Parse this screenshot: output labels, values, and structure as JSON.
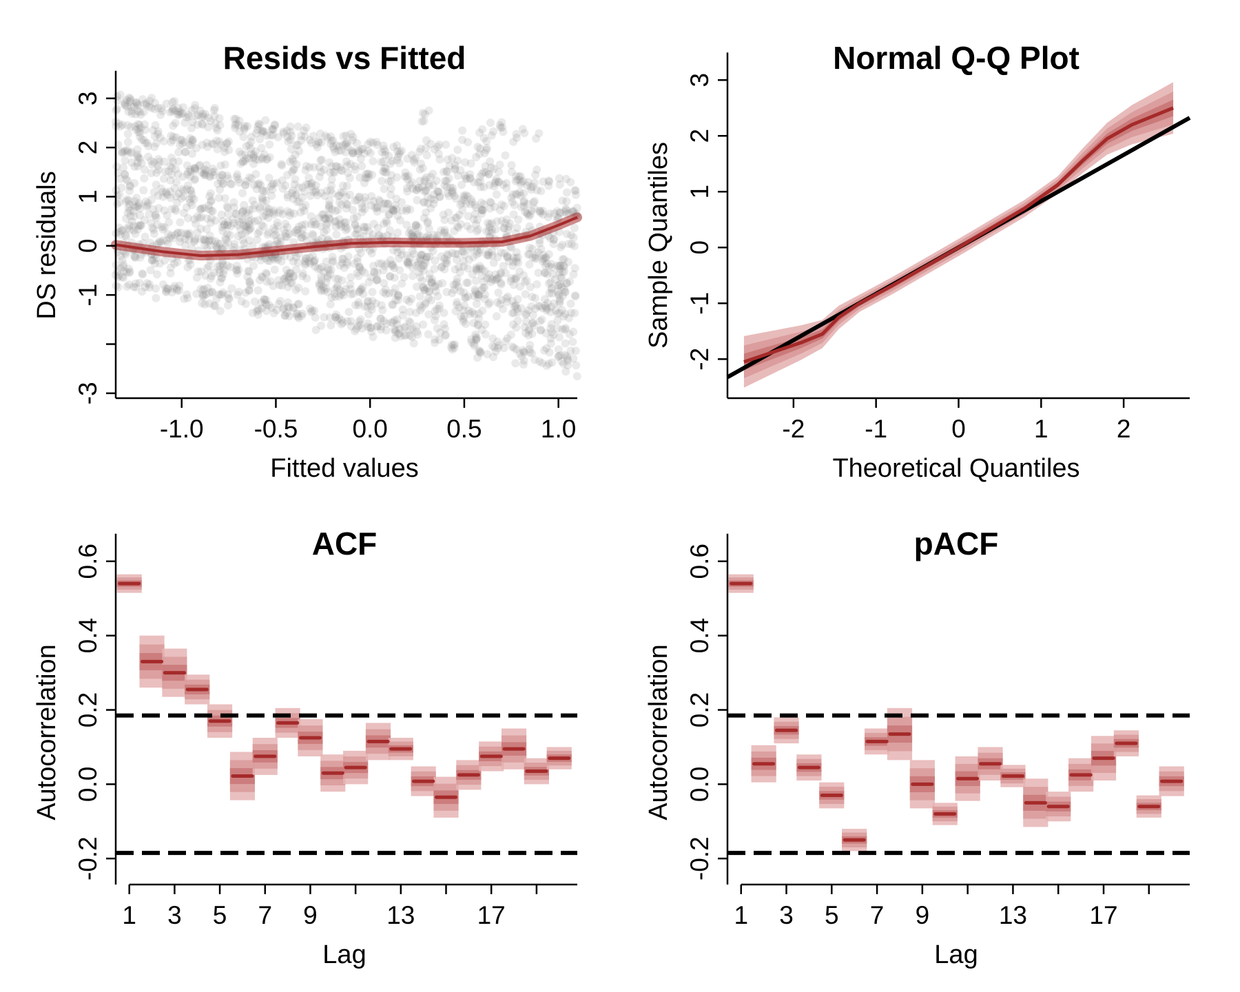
{
  "colors": {
    "point": "#8c8c8c",
    "band_outer": "#e6b4b4",
    "band_mid": "#d99a9a",
    "band_inner": "#c97777",
    "estimate": "#a52a2a",
    "reference": "#000000"
  },
  "chart_data": [
    {
      "type": "scatter",
      "title": "Resids vs Fitted",
      "xlabel": "Fitted values",
      "ylabel": "DS residuals",
      "xlim": [
        -1.35,
        1.1
      ],
      "ylim": [
        -3.1,
        3.6
      ],
      "xticks": [
        -1.0,
        -0.5,
        0.0,
        0.5,
        1.0
      ],
      "xtick_labels": [
        "-1.0",
        "-0.5",
        "0.0",
        "0.5",
        "1.0"
      ],
      "yticks": [
        -3,
        -2,
        -1,
        0,
        1,
        2,
        3
      ],
      "ytick_labels": [
        "-3",
        "",
        "-1",
        "0",
        "1",
        "2",
        "3"
      ],
      "points_note": "many semi-transparent grey points forming slanted bands",
      "smooth": {
        "x": [
          -1.35,
          -1.1,
          -0.9,
          -0.7,
          -0.5,
          -0.3,
          -0.1,
          0.1,
          0.3,
          0.5,
          0.7,
          0.85,
          1.0,
          1.1
        ],
        "y": [
          0.02,
          -0.12,
          -0.2,
          -0.18,
          -0.1,
          -0.02,
          0.05,
          0.07,
          0.06,
          0.06,
          0.08,
          0.2,
          0.42,
          0.58
        ]
      }
    },
    {
      "type": "line",
      "title": "Normal Q-Q Plot",
      "xlabel": "Theoretical Quantiles",
      "ylabel": "Sample Quantiles",
      "xlim": [
        -2.8,
        2.8
      ],
      "ylim": [
        -2.7,
        3.2
      ],
      "xticks": [
        -2,
        -1,
        0,
        1,
        2
      ],
      "xtick_labels": [
        "-2",
        "-1",
        "0",
        "1",
        "2"
      ],
      "yticks": [
        -2,
        -1,
        0,
        1,
        2,
        3
      ],
      "ytick_labels": [
        "-2",
        "-1",
        "0",
        "1",
        "2",
        "3"
      ],
      "reference_line": {
        "intercept": 0,
        "slope": 0.83
      },
      "estimate": {
        "x": [
          -2.6,
          -2.2,
          -1.9,
          -1.65,
          -1.45,
          -1.2,
          -0.8,
          -0.4,
          0,
          0.4,
          0.8,
          1.2,
          1.5,
          1.8,
          2.1,
          2.4,
          2.6
        ],
        "y": [
          -2.05,
          -1.85,
          -1.7,
          -1.55,
          -1.25,
          -1.0,
          -0.68,
          -0.34,
          0,
          0.35,
          0.7,
          1.12,
          1.55,
          1.95,
          2.2,
          2.38,
          2.5
        ]
      }
    },
    {
      "type": "bar",
      "title": "ACF",
      "xlabel": "Lag",
      "ylabel": "Autocorrelation",
      "ylim": [
        -0.27,
        0.62
      ],
      "yticks": [
        -0.2,
        0.0,
        0.2,
        0.4,
        0.6
      ],
      "ytick_labels": [
        "-0.2",
        "0.0",
        "0.2",
        "0.4",
        "0.6"
      ],
      "xticks": [
        1,
        3,
        5,
        7,
        9,
        11,
        13,
        15,
        17,
        19
      ],
      "xtick_labels": [
        "1",
        "3",
        "5",
        "7",
        "9",
        "",
        "13",
        "",
        "17",
        ""
      ],
      "lags": [
        1,
        2,
        3,
        4,
        5,
        6,
        7,
        8,
        9,
        10,
        11,
        12,
        13,
        14,
        15,
        16,
        17,
        18,
        19,
        20
      ],
      "values": [
        0.54,
        0.33,
        0.3,
        0.255,
        0.17,
        0.022,
        0.075,
        0.165,
        0.125,
        0.03,
        0.045,
        0.115,
        0.095,
        0.008,
        -0.035,
        0.025,
        0.075,
        0.095,
        0.035,
        0.07
      ],
      "half_width": [
        0.025,
        0.07,
        0.065,
        0.04,
        0.045,
        0.065,
        0.05,
        0.04,
        0.05,
        0.05,
        0.045,
        0.05,
        0.03,
        0.04,
        0.055,
        0.04,
        0.04,
        0.055,
        0.035,
        0.03
      ],
      "ci": 0.185
    },
    {
      "type": "bar",
      "title": "pACF",
      "xlabel": "Lag",
      "ylabel": "Autocorrelation",
      "ylim": [
        -0.27,
        0.62
      ],
      "yticks": [
        -0.2,
        0.0,
        0.2,
        0.4,
        0.6
      ],
      "ytick_labels": [
        "-0.2",
        "0.0",
        "0.2",
        "0.4",
        "0.6"
      ],
      "xticks": [
        1,
        3,
        5,
        7,
        9,
        11,
        13,
        15,
        17,
        19
      ],
      "xtick_labels": [
        "1",
        "3",
        "5",
        "7",
        "9",
        "",
        "13",
        "",
        "17",
        ""
      ],
      "lags": [
        1,
        2,
        3,
        4,
        5,
        6,
        7,
        8,
        9,
        10,
        11,
        12,
        13,
        14,
        15,
        16,
        17,
        18,
        19,
        20
      ],
      "values": [
        0.54,
        0.055,
        0.145,
        0.045,
        -0.03,
        -0.15,
        0.115,
        0.135,
        0.0,
        -0.08,
        0.015,
        0.055,
        0.022,
        -0.05,
        -0.06,
        0.025,
        0.07,
        0.11,
        -0.06,
        0.008
      ],
      "half_width": [
        0.025,
        0.05,
        0.035,
        0.035,
        0.035,
        0.03,
        0.035,
        0.07,
        0.065,
        0.03,
        0.06,
        0.045,
        0.03,
        0.065,
        0.04,
        0.045,
        0.06,
        0.035,
        0.03,
        0.04
      ],
      "ci": 0.185
    }
  ]
}
